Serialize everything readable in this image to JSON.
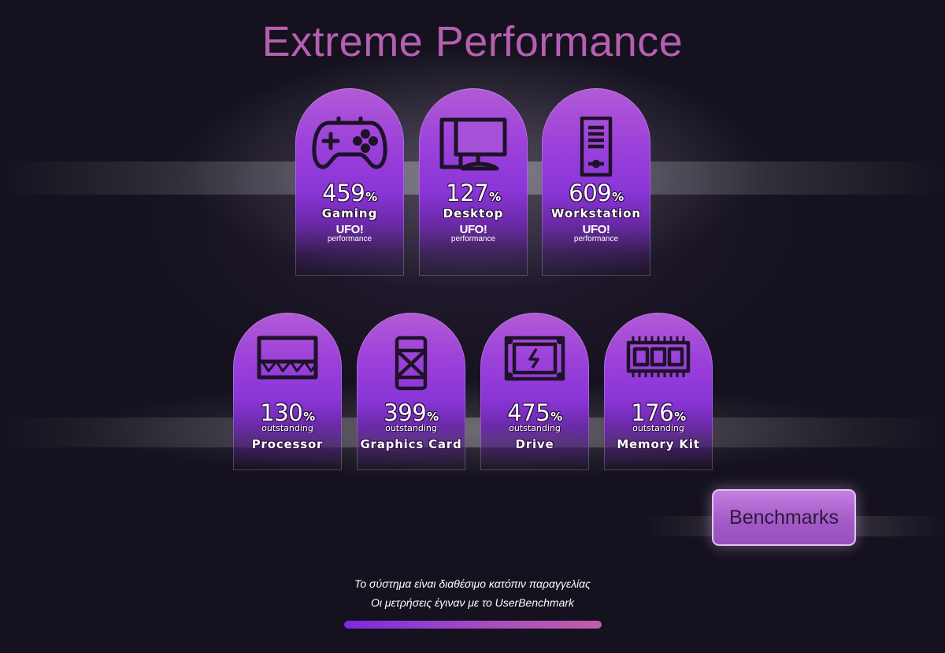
{
  "title": "Extreme Performance",
  "colors": {
    "title": "#b45fb0",
    "pill_top": "#b15bd6",
    "pill_mid": "#8a35d8",
    "button": "#a45ac8",
    "progress_start": "#7a2be0",
    "progress_end": "#c15fa8"
  },
  "systems": [
    {
      "icon": "gamepad-icon",
      "percent": "459",
      "unit": "%",
      "label": "Gaming",
      "brand": "UFO!",
      "brand_sub": "performance"
    },
    {
      "icon": "desktop-computer-icon",
      "percent": "127",
      "unit": "%",
      "label": "Desktop",
      "brand": "UFO!",
      "brand_sub": "performance"
    },
    {
      "icon": "workstation-tower-icon",
      "percent": "609",
      "unit": "%",
      "label": "Workstation",
      "brand": "UFO!",
      "brand_sub": "performance"
    }
  ],
  "components": [
    {
      "icon": "processor-chip-icon",
      "percent": "130",
      "unit": "%",
      "sub": "outstanding",
      "label": "Processor"
    },
    {
      "icon": "graphics-card-icon",
      "percent": "399",
      "unit": "%",
      "sub": "outstanding",
      "label": "Graphics Card"
    },
    {
      "icon": "drive-icon",
      "percent": "475",
      "unit": "%",
      "sub": "outstanding",
      "label": "Drive"
    },
    {
      "icon": "memory-kit-icon",
      "percent": "176",
      "unit": "%",
      "sub": "outstanding",
      "label": "Memory Kit"
    }
  ],
  "benchmarks_button": "Benchmarks",
  "footer": {
    "line1": "Το σύστημα είναι διαθέσιμο κατόπιν παραγγελίας",
    "line2": "Οι μετρήσεις έγιναν με το UserBenchmark"
  }
}
